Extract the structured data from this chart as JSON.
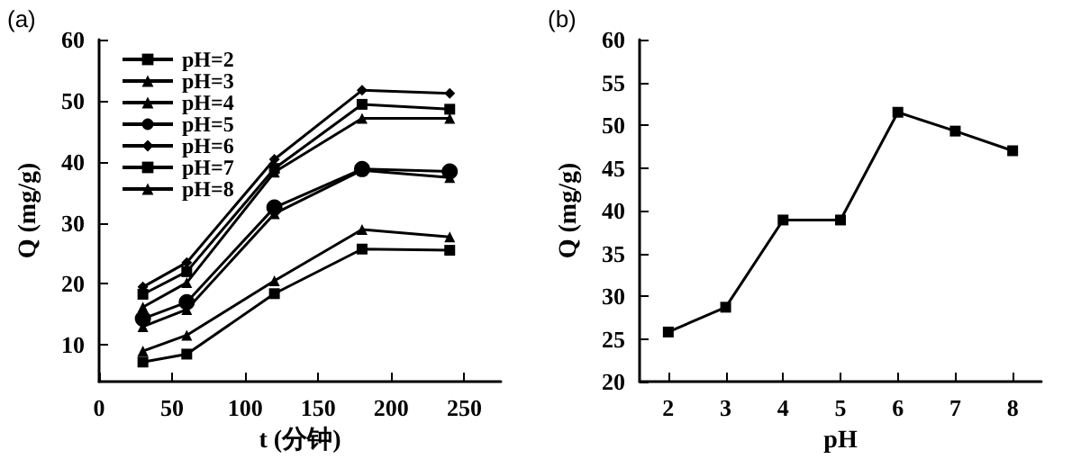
{
  "chart_data": [
    {
      "type": "line",
      "xlabel": "t (分钟)",
      "ylabel": "Q (mg/g)",
      "annotations": [
        "(a)"
      ],
      "xlim": [
        0,
        275
      ],
      "xticks": [
        0,
        50,
        100,
        150,
        200,
        250
      ],
      "ylim": [
        4,
        60
      ],
      "yticks": [
        10,
        20,
        30,
        40,
        50,
        60
      ],
      "x": [
        30,
        60,
        120,
        180,
        240
      ],
      "grid": false,
      "legend": "top left",
      "series": [
        {
          "name": "pH=2",
          "color": "#000000",
          "marker": "square",
          "values": [
            7.2,
            8.5,
            18.4,
            25.7,
            25.5
          ]
        },
        {
          "name": "pH=3",
          "color": "#000000",
          "marker": "triangle",
          "values": [
            9.0,
            11.6,
            20.5,
            28.9,
            27.7
          ]
        },
        {
          "name": "pH=4",
          "color": "#000000",
          "marker": "triangle",
          "values": [
            13.0,
            15.8,
            31.5,
            38.6,
            37.4
          ]
        },
        {
          "name": "pH=5",
          "color": "#000000",
          "marker": "circle",
          "values": [
            14.3,
            17.0,
            32.5,
            38.8,
            38.4
          ]
        },
        {
          "name": "pH=6",
          "color": "#000000",
          "marker": "diamond",
          "values": [
            19.5,
            23.5,
            40.4,
            51.7,
            51.2
          ]
        },
        {
          "name": "pH=7",
          "color": "#000000",
          "marker": "square",
          "values": [
            18.3,
            22.0,
            38.9,
            49.4,
            48.6
          ]
        },
        {
          "name": "pH=8",
          "color": "#000000",
          "marker": "triangle",
          "values": [
            16.2,
            20.2,
            38.3,
            47.1,
            47.1
          ]
        }
      ]
    },
    {
      "type": "line",
      "xlabel": "pH",
      "ylabel": "Q (mg/g)",
      "annotations": [
        "(b)"
      ],
      "xlim": [
        1.5,
        8.5
      ],
      "xticks": [
        2,
        3,
        4,
        5,
        6,
        7,
        8
      ],
      "ylim": [
        20,
        60
      ],
      "yticks": [
        20,
        25,
        30,
        35,
        40,
        45,
        50,
        55,
        60
      ],
      "x": [
        2,
        3,
        4,
        5,
        6,
        7,
        8
      ],
      "grid": false,
      "legend": false,
      "series": [
        {
          "color": "#000000",
          "marker": "square",
          "values": [
            25.8,
            28.7,
            38.9,
            38.9,
            51.5,
            49.3,
            47.0
          ]
        }
      ]
    }
  ]
}
